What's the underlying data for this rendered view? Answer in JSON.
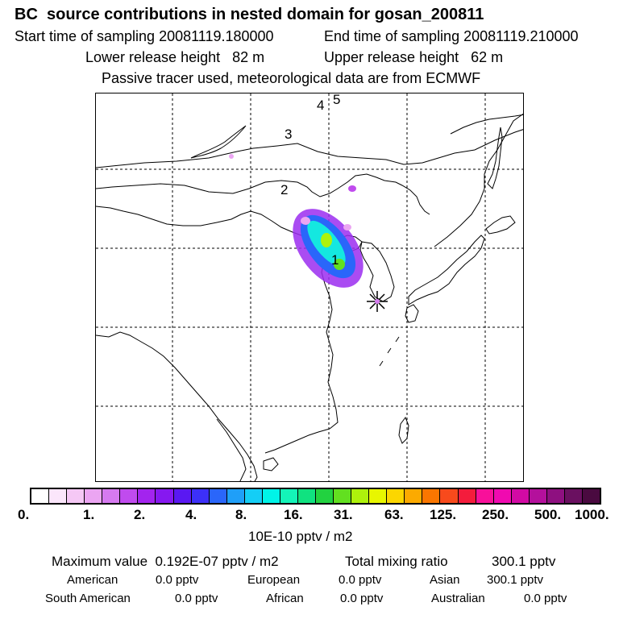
{
  "header": {
    "title": "BC  source contributions in nested domain for gosan_200811",
    "start_time": "Start time of sampling 20081119.180000",
    "end_time": "End time of sampling 20081119.210000",
    "lower_height": "Lower release height   82 m",
    "upper_height": "Upper release height   62 m",
    "description": "Passive tracer used, meteorological data are from ECMWF"
  },
  "map": {
    "trajectory_labels": [
      "1",
      "2",
      "3",
      "4",
      "5"
    ],
    "receptor_marker": "receptor-star"
  },
  "colorbar": {
    "colors": [
      "#ffffff",
      "#fbe6fb",
      "#f5c8f5",
      "#eba5f2",
      "#d67af0",
      "#c04bee",
      "#a324ee",
      "#8618f0",
      "#5a18f2",
      "#3c30f8",
      "#2a66fa",
      "#1f9ff8",
      "#14cef6",
      "#00f4e8",
      "#14f4b8",
      "#10e280",
      "#22d240",
      "#62e020",
      "#aef20c",
      "#e8f600",
      "#fcd600",
      "#fcaa00",
      "#fa7600",
      "#f84a1c",
      "#f41c3c",
      "#f8109a",
      "#f00ab0",
      "#d20aa4",
      "#b4109c",
      "#8e1080",
      "#6a1060",
      "#4a0a40"
    ],
    "tick_labels": [
      "0.",
      "1.",
      "2.",
      "4.",
      "8.",
      "16.",
      "31.",
      "63.",
      "125.",
      "250.",
      "500.",
      "1000."
    ],
    "unit": "10E-10 pptv / m2"
  },
  "stats": {
    "max_label": "Maximum value  0.192E-07 pptv / m2",
    "total_label": "Total mixing ratio",
    "total_value": "300.1 pptv",
    "regions": [
      {
        "name": "American",
        "value": "0.0 pptv"
      },
      {
        "name": "European",
        "value": "0.0 pptv"
      },
      {
        "name": "Asian",
        "value": "300.1 pptv"
      },
      {
        "name": "South American",
        "value": "0.0 pptv"
      },
      {
        "name": "African",
        "value": "0.0 pptv"
      },
      {
        "name": "Australian",
        "value": "0.0 pptv"
      }
    ]
  }
}
